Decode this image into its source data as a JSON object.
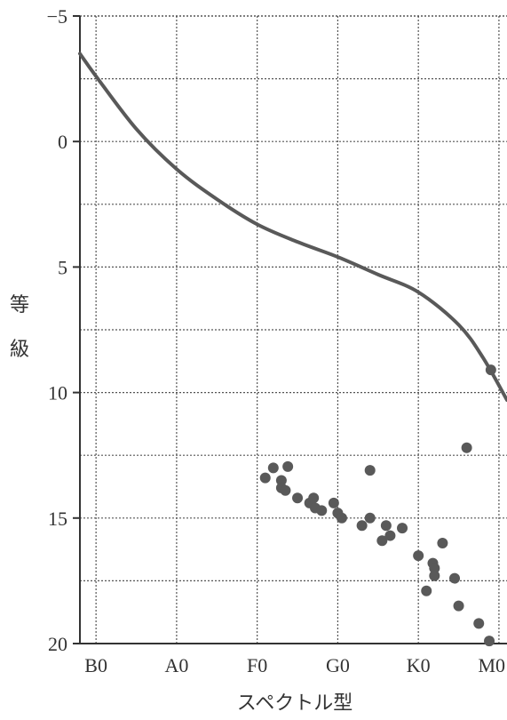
{
  "chart_data": {
    "type": "scatter",
    "title": "",
    "xlabel": "スペクトル型",
    "ylabel_chars": [
      "等",
      "級"
    ],
    "x_ticks": [
      "B0",
      "A0",
      "F0",
      "G0",
      "K0",
      "M0"
    ],
    "y_ticks": [
      "−5",
      "0",
      "5",
      "10",
      "15",
      "20"
    ],
    "y_tick_values": [
      -5,
      0,
      5,
      10,
      15,
      20
    ],
    "xlim": [
      -0.2,
      5.1
    ],
    "ylim": [
      20,
      -5
    ],
    "y_inverted": true,
    "grid": true,
    "series": [
      {
        "mark": "line",
        "points": [
          [
            -0.2,
            -3.5
          ],
          [
            0,
            -2.6
          ],
          [
            0.5,
            -0.5
          ],
          [
            1,
            1.1
          ],
          [
            1.5,
            2.3
          ],
          [
            2,
            3.3
          ],
          [
            2.5,
            4.0
          ],
          [
            3,
            4.6
          ],
          [
            3.5,
            5.3
          ],
          [
            4,
            6.0
          ],
          [
            4.5,
            7.3
          ],
          [
            4.8,
            8.6
          ],
          [
            5.1,
            10.3
          ]
        ]
      },
      {
        "mark": "point",
        "points": [
          [
            2.1,
            13.4
          ],
          [
            2.2,
            13.0
          ],
          [
            2.3,
            13.5
          ],
          [
            2.3,
            13.8
          ],
          [
            2.38,
            12.95
          ],
          [
            2.35,
            13.9
          ],
          [
            2.5,
            14.2
          ],
          [
            2.65,
            14.4
          ],
          [
            2.7,
            14.2
          ],
          [
            2.72,
            14.6
          ],
          [
            2.8,
            14.7
          ],
          [
            2.95,
            14.4
          ],
          [
            3.0,
            14.8
          ],
          [
            3.05,
            15.0
          ],
          [
            3.4,
            13.1
          ],
          [
            3.4,
            15.0
          ],
          [
            3.3,
            15.3
          ],
          [
            3.55,
            15.9
          ],
          [
            3.6,
            15.3
          ],
          [
            3.65,
            15.7
          ],
          [
            3.8,
            15.4
          ],
          [
            4.0,
            16.5
          ],
          [
            4.1,
            17.9
          ],
          [
            4.18,
            16.8
          ],
          [
            4.2,
            17.0
          ],
          [
            4.2,
            17.3
          ],
          [
            4.3,
            16.0
          ],
          [
            4.45,
            17.4
          ],
          [
            4.5,
            18.5
          ],
          [
            4.6,
            12.2
          ],
          [
            4.75,
            19.2
          ],
          [
            4.9,
            9.1
          ],
          [
            4.88,
            19.9
          ]
        ]
      }
    ],
    "colors": {
      "line": "#595959",
      "points": "#595959",
      "grid": "#555555",
      "axis": "#333333"
    }
  }
}
